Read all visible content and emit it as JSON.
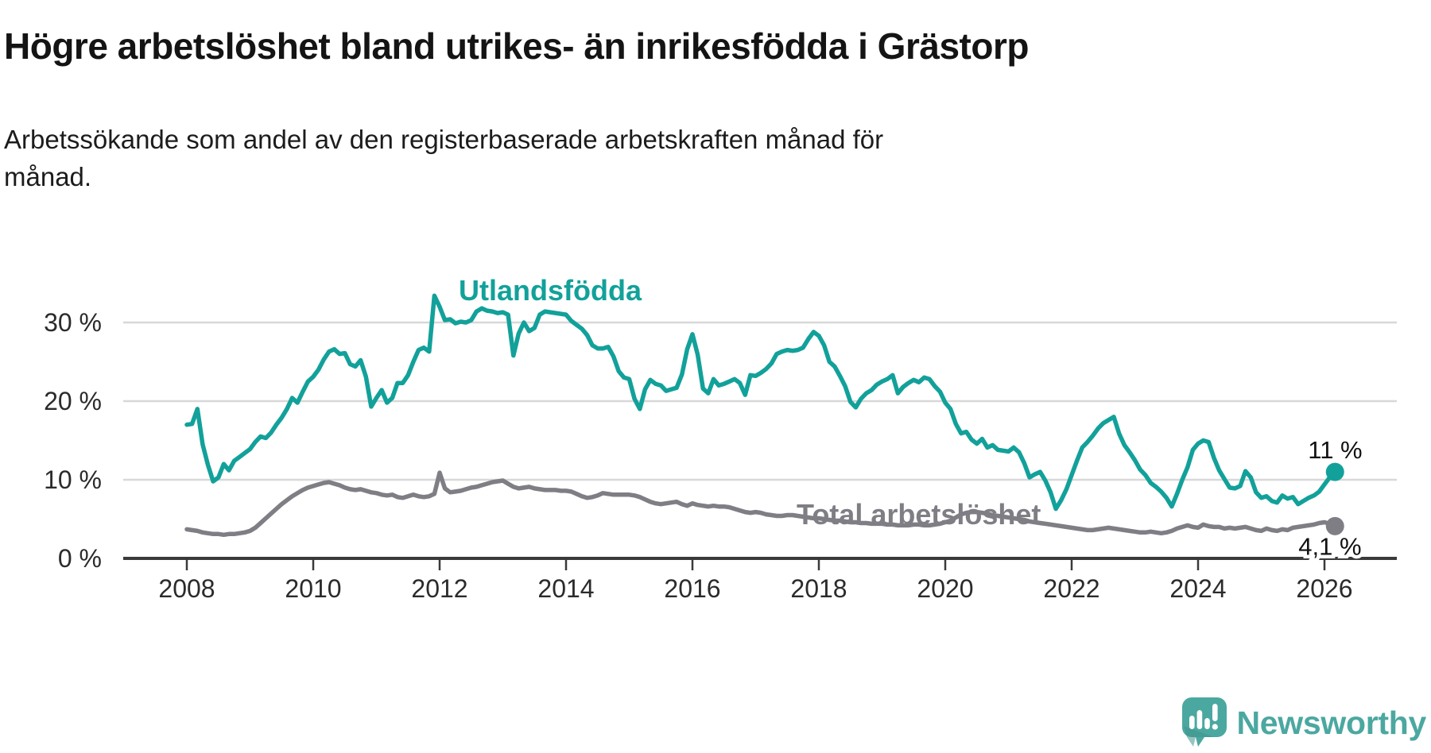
{
  "page": {
    "title": "Högre arbetslöshet bland utrikes- än inrikesfödda i Grästorp",
    "subtitle_line1": "Arbetssökande som andel av den registerbaserade arbetskraften månad för",
    "subtitle_line2": "månad."
  },
  "branding": {
    "logo_text": "Newsworthy",
    "logo_color": "#4BA8A0",
    "logo_icon": "speech-bubble-bar-chart-exclamation"
  },
  "colors": {
    "series_foreign": "#12A19A",
    "series_total": "#7E7E84",
    "gridline": "#D8D8D8",
    "axis": "#3A3A3A",
    "tick_text": "#2B2B2B",
    "end_label_text": "#111111"
  },
  "chart_data": {
    "type": "line",
    "unit": "%",
    "x_start": {
      "year": 2008,
      "month": 1
    },
    "x_frequency": "monthly",
    "x_tick_labels": [
      "2008",
      "2010",
      "2012",
      "2014",
      "2016",
      "2018",
      "2020",
      "2022",
      "2024",
      "2026"
    ],
    "y_ticks": [
      0,
      10,
      20,
      30
    ],
    "y_tick_labels": [
      "0 %",
      "10 %",
      "20 %",
      "30 %"
    ],
    "ylim": [
      0,
      34
    ],
    "grid": "horizontal",
    "legend_position": "inline-labels",
    "series": [
      {
        "name": "Utlandsfödda",
        "color": "#12A19A",
        "end_value": 11.0,
        "end_label": "11 %",
        "values": [
          17.0,
          17.1,
          19.0,
          14.5,
          11.9,
          9.8,
          10.3,
          12.0,
          11.2,
          12.4,
          12.9,
          13.4,
          13.9,
          14.8,
          15.5,
          15.3,
          16.0,
          17.0,
          17.9,
          19.0,
          20.4,
          19.8,
          21.2,
          22.5,
          23.1,
          24.0,
          25.3,
          26.3,
          26.6,
          26.0,
          26.1,
          24.7,
          24.4,
          25.2,
          23.1,
          19.3,
          20.4,
          21.4,
          19.8,
          20.4,
          22.3,
          22.3,
          23.3,
          25.0,
          26.5,
          26.8,
          26.3,
          33.4,
          32.0,
          30.3,
          30.4,
          29.9,
          30.1,
          30.0,
          30.3,
          31.4,
          31.8,
          31.5,
          31.4,
          31.2,
          31.3,
          31.0,
          25.8,
          28.6,
          30.0,
          28.9,
          29.3,
          31.0,
          31.4,
          31.3,
          31.2,
          31.1,
          31.0,
          30.2,
          29.7,
          29.2,
          28.4,
          27.1,
          26.7,
          26.7,
          26.9,
          25.7,
          23.8,
          23.0,
          22.8,
          20.3,
          19.0,
          21.5,
          22.7,
          22.2,
          22.0,
          21.3,
          21.5,
          21.7,
          23.4,
          26.6,
          28.5,
          25.9,
          21.6,
          21.0,
          22.8,
          22.0,
          22.2,
          22.5,
          22.8,
          22.3,
          20.8,
          23.3,
          23.2,
          23.6,
          24.1,
          24.8,
          26.0,
          26.3,
          26.5,
          26.4,
          26.5,
          26.8,
          27.9,
          28.8,
          28.3,
          27.1,
          25.0,
          24.4,
          23.2,
          21.9,
          19.9,
          19.2,
          20.3,
          21.0,
          21.4,
          22.1,
          22.5,
          22.8,
          23.3,
          21.0,
          21.8,
          22.3,
          22.7,
          22.4,
          23.0,
          22.8,
          21.9,
          21.2,
          19.8,
          19.0,
          17.1,
          15.9,
          16.1,
          15.1,
          14.6,
          15.2,
          14.1,
          14.4,
          13.8,
          13.7,
          13.6,
          14.1,
          13.5,
          12.1,
          10.3,
          10.7,
          11.0,
          9.9,
          8.4,
          6.3,
          7.4,
          8.8,
          10.6,
          12.4,
          14.1,
          14.8,
          15.6,
          16.5,
          17.2,
          17.6,
          18.0,
          15.9,
          14.4,
          13.5,
          12.5,
          11.3,
          10.6,
          9.6,
          9.1,
          8.5,
          7.7,
          6.6,
          8.2,
          10.0,
          11.6,
          13.8,
          14.6,
          15.0,
          14.8,
          12.8,
          11.2,
          10.1,
          9.0,
          8.9,
          9.2,
          11.1,
          10.3,
          8.4,
          7.7,
          7.9,
          7.3,
          7.1,
          8.0,
          7.6,
          7.8,
          6.9,
          7.3,
          7.7,
          8.0,
          8.5,
          9.4,
          10.3,
          11.0
        ]
      },
      {
        "name": "Total arbetslöshet",
        "color": "#7E7E84",
        "end_value": 4.1,
        "end_label": "4,1 %",
        "values": [
          3.7,
          3.6,
          3.5,
          3.3,
          3.2,
          3.1,
          3.1,
          3.0,
          3.1,
          3.1,
          3.2,
          3.3,
          3.5,
          3.9,
          4.5,
          5.1,
          5.7,
          6.3,
          6.9,
          7.4,
          7.9,
          8.3,
          8.7,
          9.0,
          9.2,
          9.4,
          9.6,
          9.7,
          9.5,
          9.3,
          9.0,
          8.8,
          8.7,
          8.8,
          8.6,
          8.4,
          8.3,
          8.1,
          8.0,
          8.1,
          7.8,
          7.7,
          7.9,
          8.1,
          7.9,
          7.8,
          7.9,
          8.2,
          10.9,
          8.9,
          8.4,
          8.5,
          8.6,
          8.8,
          9.0,
          9.1,
          9.3,
          9.5,
          9.7,
          9.8,
          9.9,
          9.5,
          9.1,
          8.9,
          9.0,
          9.1,
          8.9,
          8.8,
          8.7,
          8.7,
          8.7,
          8.6,
          8.6,
          8.5,
          8.2,
          7.9,
          7.7,
          7.8,
          8.0,
          8.3,
          8.2,
          8.1,
          8.1,
          8.1,
          8.1,
          8.0,
          7.8,
          7.5,
          7.2,
          7.0,
          6.9,
          7.0,
          7.1,
          7.2,
          6.9,
          6.7,
          7.0,
          6.8,
          6.7,
          6.6,
          6.7,
          6.6,
          6.6,
          6.5,
          6.3,
          6.1,
          5.9,
          5.8,
          5.9,
          5.8,
          5.6,
          5.5,
          5.4,
          5.4,
          5.5,
          5.5,
          5.4,
          5.3,
          5.2,
          5.1,
          5.1,
          5.0,
          4.9,
          4.8,
          4.8,
          4.7,
          4.6,
          4.6,
          4.5,
          4.5,
          4.4,
          4.4,
          4.4,
          4.3,
          4.3,
          4.2,
          4.2,
          4.2,
          4.3,
          4.3,
          4.2,
          4.2,
          4.3,
          4.4,
          4.6,
          4.8,
          5.2,
          5.6,
          5.8,
          5.9,
          5.9,
          5.8,
          5.7,
          5.5,
          5.4,
          5.3,
          5.2,
          5.1,
          5.0,
          4.9,
          4.7,
          4.6,
          4.5,
          4.4,
          4.3,
          4.2,
          4.1,
          4.0,
          3.9,
          3.8,
          3.7,
          3.6,
          3.6,
          3.7,
          3.8,
          3.9,
          3.8,
          3.7,
          3.6,
          3.5,
          3.4,
          3.3,
          3.3,
          3.4,
          3.3,
          3.2,
          3.3,
          3.5,
          3.8,
          4.0,
          4.2,
          4.0,
          3.9,
          4.3,
          4.1,
          4.0,
          4.0,
          3.8,
          3.9,
          3.8,
          3.9,
          4.0,
          3.8,
          3.6,
          3.5,
          3.8,
          3.6,
          3.5,
          3.7,
          3.6,
          3.9,
          4.0,
          4.1,
          4.2,
          4.3,
          4.5,
          4.6,
          4.4,
          4.1
        ]
      }
    ]
  }
}
